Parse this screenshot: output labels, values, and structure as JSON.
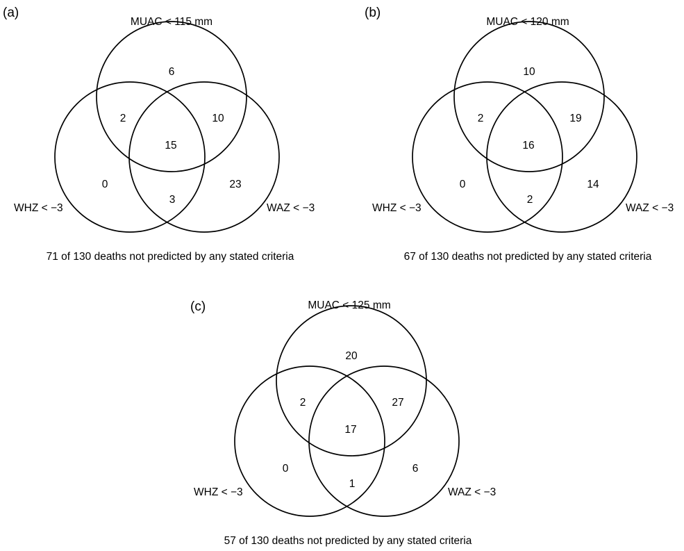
{
  "panels": [
    {
      "label": "(a)",
      "sets": {
        "top": "MUAC < 115 mm",
        "left": "WHZ < −3",
        "right": "WAZ < −3"
      },
      "regions": {
        "top_only": "6",
        "top_left": "2",
        "top_right": "10",
        "all_three": "15",
        "left_only": "0",
        "left_right": "3",
        "right_only": "23"
      },
      "caption": "71 of 130 deaths not predicted by any stated criteria"
    },
    {
      "label": "(b)",
      "sets": {
        "top": "MUAC < 120 mm",
        "left": "WHZ < −3",
        "right": "WAZ < −3"
      },
      "regions": {
        "top_only": "10",
        "top_left": "2",
        "top_right": "19",
        "all_three": "16",
        "left_only": "0",
        "left_right": "2",
        "right_only": "14"
      },
      "caption": "67 of 130 deaths not predicted by any stated criteria"
    },
    {
      "label": "(c)",
      "sets": {
        "top": "MUAC < 125 mm",
        "left": "WHZ < −3",
        "right": "WAZ < −3"
      },
      "regions": {
        "top_only": "20",
        "top_left": "2",
        "top_right": "27",
        "all_three": "17",
        "left_only": "0",
        "left_right": "1",
        "right_only": "6"
      },
      "caption": "57 of 130 deaths not predicted by any stated criteria"
    }
  ]
}
